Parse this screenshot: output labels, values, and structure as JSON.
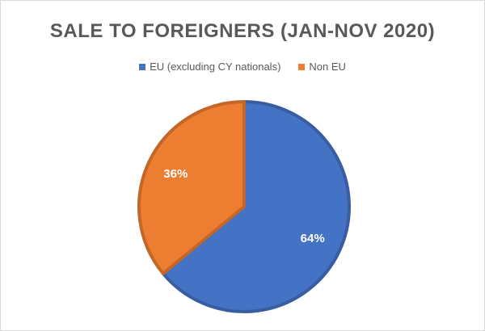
{
  "chart_data": {
    "type": "pie",
    "title": "SALE TO FOREIGNERS (JAN-NOV 2020)",
    "legend_position": "top",
    "slices": [
      {
        "name": "EU (excluding CY nationals)",
        "value": 64,
        "label": "64%",
        "color": "#4472C4"
      },
      {
        "name": "Non EU",
        "value": 36,
        "label": "36%",
        "color": "#ED7D31"
      }
    ]
  }
}
